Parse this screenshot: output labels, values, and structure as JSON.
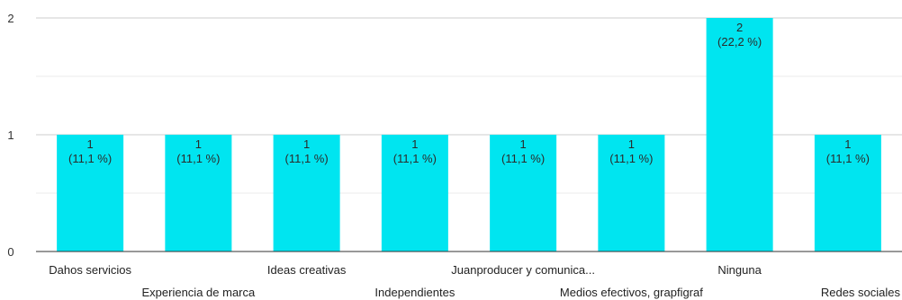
{
  "chart_data": {
    "type": "bar",
    "categories": [
      "Dahos servicios",
      "Experiencia de marca",
      "Ideas creativas",
      "Independientes",
      "Juanproducer y comunica...",
      "Medios efectivos, grapfigraf",
      "Ninguna",
      "Redes sociales"
    ],
    "values": [
      1,
      1,
      1,
      1,
      1,
      1,
      2,
      1
    ],
    "data_labels": [
      [
        "1",
        "(11,1 %)"
      ],
      [
        "1",
        "(11,1 %)"
      ],
      [
        "1",
        "(11,1 %)"
      ],
      [
        "1",
        "(11,1 %)"
      ],
      [
        "1",
        "(11,1 %)"
      ],
      [
        "1",
        "(11,1 %)"
      ],
      [
        "2",
        "(22,2 %)"
      ],
      [
        "1",
        "(11,1 %)"
      ]
    ],
    "yticks": [
      0,
      1,
      2
    ],
    "ylim": [
      0,
      2
    ],
    "grid": true,
    "bar_color": "#00e5f0",
    "title": "",
    "xlabel": "",
    "ylabel": ""
  }
}
